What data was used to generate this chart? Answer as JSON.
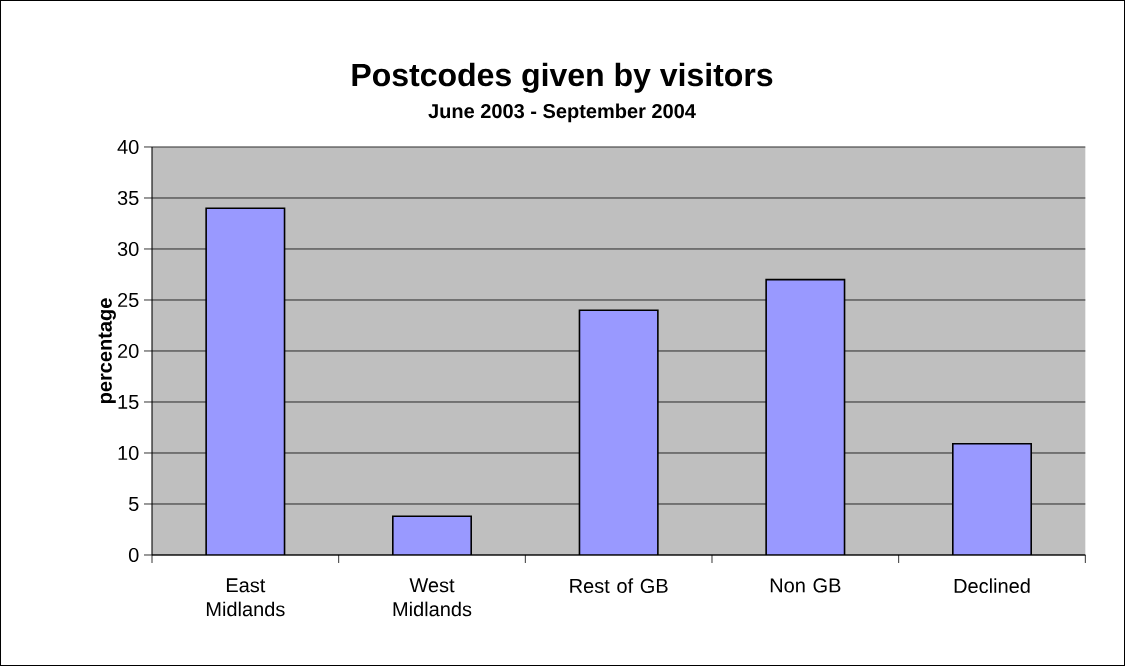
{
  "chart_data": {
    "type": "bar",
    "title": "Postcodes given by visitors",
    "subtitle": "June 2003 - September 2004",
    "ylabel": "percentage",
    "categories": [
      "East Midlands",
      "West Midlands",
      "Rest of GB",
      "Non GB",
      "Declined"
    ],
    "values": [
      34,
      3.8,
      24,
      27,
      10.9
    ],
    "color": "#9999ff",
    "ylim": [
      0,
      40
    ],
    "yticks": [
      0,
      5,
      10,
      15,
      20,
      25,
      30,
      35,
      40
    ],
    "grid": "y"
  }
}
